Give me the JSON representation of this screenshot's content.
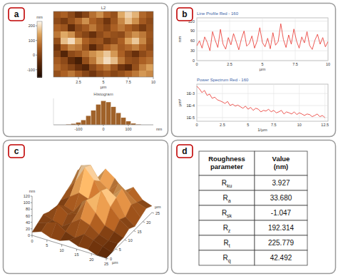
{
  "panels": [
    "a",
    "b",
    "c",
    "d"
  ],
  "chart_data": [
    {
      "type": "heatmap",
      "title": "L2",
      "xlabel": "µm",
      "xlim": [
        0,
        10
      ],
      "ylim": [
        0,
        10
      ],
      "xticks": [
        2.5,
        5,
        7.5,
        10
      ],
      "colorbar_label": "nm",
      "colorbar_range": [
        -150,
        230
      ],
      "colorbar_ticks": [
        -100,
        0,
        100,
        200
      ],
      "cells": [
        [
          40,
          60,
          20,
          -30,
          10,
          80,
          120,
          60,
          30,
          150,
          190,
          160,
          70,
          40
        ],
        [
          20,
          -10,
          30,
          70,
          120,
          60,
          30,
          -20,
          40,
          110,
          170,
          120,
          50,
          20
        ],
        [
          60,
          40,
          -40,
          20,
          50,
          90,
          40,
          10,
          60,
          90,
          60,
          30,
          -10,
          30
        ],
        [
          90,
          150,
          120,
          40,
          10,
          -30,
          20,
          50,
          30,
          20,
          80,
          120,
          90,
          40
        ],
        [
          30,
          170,
          200,
          140,
          60,
          30,
          40,
          -10,
          20,
          60,
          140,
          180,
          110,
          30
        ],
        [
          -20,
          60,
          110,
          90,
          30,
          -50,
          10,
          60,
          90,
          50,
          70,
          100,
          60,
          20
        ],
        [
          10,
          -60,
          20,
          40,
          80,
          120,
          150,
          180,
          130,
          60,
          10,
          -30,
          20,
          50
        ],
        [
          50,
          20,
          -40,
          -80,
          30,
          90,
          160,
          200,
          170,
          90,
          30,
          20,
          60,
          80
        ],
        [
          70,
          40,
          10,
          -30,
          -60,
          20,
          60,
          90,
          40,
          -20,
          -50,
          30,
          100,
          140
        ],
        [
          30,
          60,
          90,
          50,
          10,
          -20,
          20,
          40,
          10,
          30,
          60,
          90,
          130,
          110
        ]
      ]
    },
    {
      "type": "histogram",
      "title": "Histogram",
      "xlabel": "nm",
      "bins": [
        -150,
        -130,
        -110,
        -90,
        -70,
        -50,
        -30,
        -10,
        10,
        30,
        50,
        70,
        90,
        110,
        130,
        150
      ],
      "counts": [
        2,
        5,
        10,
        20,
        38,
        60,
        85,
        100,
        95,
        75,
        50,
        30,
        15,
        6,
        2
      ],
      "color": "#a0622a",
      "xlim": [
        -200,
        200
      ],
      "ylim": [
        0,
        110
      ],
      "xticks": [
        -100,
        0,
        100
      ],
      "tick_labels": "x"
    },
    {
      "type": "line",
      "title": "Line Profile Red - 160",
      "xlabel": "µm",
      "ylabel": "nm",
      "x": [
        0,
        0.2,
        0.4,
        0.6,
        0.8,
        1,
        1.2,
        1.4,
        1.6,
        1.8,
        2,
        2.2,
        2.4,
        2.6,
        2.8,
        3,
        3.2,
        3.4,
        3.6,
        3.8,
        4,
        4.2,
        4.4,
        4.6,
        4.8,
        5,
        5.2,
        5.4,
        5.6,
        5.8,
        6,
        6.2,
        6.4,
        6.6,
        6.8,
        7,
        7.2,
        7.4,
        7.6,
        7.8,
        8,
        8.2,
        8.4,
        8.6,
        8.8,
        9,
        9.2,
        9.4,
        9.6,
        9.8,
        10
      ],
      "values": [
        45,
        60,
        38,
        72,
        55,
        30,
        88,
        62,
        40,
        95,
        50,
        35,
        70,
        48,
        82,
        58,
        33,
        66,
        90,
        44,
        52,
        75,
        38,
        60,
        100,
        55,
        42,
        68,
        36,
        85,
        47,
        58,
        112,
        64,
        40,
        78,
        50,
        96,
        60,
        38,
        72,
        54,
        88,
        46,
        34,
        62,
        80,
        50,
        70,
        42,
        58
      ],
      "color": "#e8302a",
      "xlim": [
        0,
        10
      ],
      "ylim": [
        0,
        130
      ],
      "xticks": [
        0,
        2.5,
        5,
        7.5,
        10
      ],
      "yticks": [
        0,
        30,
        60,
        90,
        120
      ],
      "grid": true
    },
    {
      "type": "line",
      "title": "Power Spectrum Red - 160",
      "xlabel": "1/µm",
      "ylabel": "µm³",
      "log": "y",
      "x": [
        0,
        0.25,
        0.5,
        0.75,
        1,
        1.25,
        1.5,
        1.75,
        2,
        2.25,
        2.5,
        2.75,
        3,
        3.25,
        3.5,
        3.75,
        4,
        4.25,
        4.5,
        4.75,
        5,
        5.25,
        5.5,
        5.75,
        6,
        6.25,
        6.5,
        6.75,
        7,
        7.25,
        7.5,
        7.75,
        8,
        8.25,
        8.5,
        8.75,
        9,
        9.25,
        9.5,
        9.75,
        10,
        10.25,
        10.5,
        10.75,
        11,
        11.25,
        11.5,
        11.75,
        12,
        12.25,
        12.5
      ],
      "values": [
        0.004,
        0.0025,
        0.0012,
        0.0018,
        0.0007,
        0.0009,
        0.0004,
        0.0005,
        0.0003,
        0.00025,
        0.0002,
        0.00015,
        0.00022,
        0.0001,
        0.00013,
        9e-05,
        0.00011,
        8e-05,
        6e-05,
        9e-05,
        5e-05,
        7e-05,
        4e-05,
        6e-05,
        5e-05,
        3e-05,
        4e-05,
        3.5e-05,
        5e-05,
        3e-05,
        4e-05,
        2.5e-05,
        3e-05,
        4e-05,
        2e-05,
        3e-05,
        2.5e-05,
        2e-05,
        3e-05,
        1.8e-05,
        2.5e-05,
        2e-05,
        1.5e-05,
        2e-05,
        1.8e-05,
        1.2e-05,
        1.5e-05,
        2e-05,
        1.2e-05,
        1.5e-05,
        1e-05
      ],
      "color": "#e8302a",
      "xlim": [
        0,
        12.8
      ],
      "ylim": [
        5e-06,
        0.006
      ],
      "xticks": [
        0,
        2.5,
        5,
        7.5,
        10,
        12.5
      ],
      "yticks": [
        {
          "value": 0.001,
          "label": "1E-3"
        },
        {
          "value": 0.0001,
          "label": "1E-4"
        },
        {
          "value": 1e-05,
          "label": "1E-5"
        }
      ],
      "grid": true
    },
    {
      "type": "surface",
      "xlabel": "µm",
      "ylabel": "µm",
      "zlabel": "nm",
      "xlim": [
        0,
        25
      ],
      "ylim": [
        0,
        25
      ],
      "zlim": [
        0,
        120
      ],
      "xticks": [
        0,
        5,
        10,
        15,
        20,
        25
      ],
      "yticks": [
        0,
        5,
        10,
        15,
        20,
        25
      ],
      "zticks": [
        0,
        20,
        40,
        60,
        80,
        100,
        120
      ],
      "z": [
        [
          60,
          80,
          50,
          90,
          70,
          40,
          60,
          30,
          20
        ],
        [
          40,
          100,
          110,
          70,
          50,
          80,
          60,
          40,
          30
        ],
        [
          30,
          70,
          120,
          90,
          40,
          60,
          90,
          50,
          20
        ],
        [
          20,
          40,
          60,
          50,
          30,
          100,
          80,
          30,
          10
        ],
        [
          10,
          30,
          20,
          60,
          80,
          110,
          70,
          40,
          20
        ],
        [
          20,
          50,
          30,
          40,
          90,
          60,
          30,
          20,
          10
        ],
        [
          30,
          20,
          10,
          30,
          50,
          40,
          20,
          10,
          10
        ],
        [
          20,
          30,
          40,
          20,
          10,
          30,
          20,
          10,
          0
        ],
        [
          10,
          20,
          10,
          10,
          20,
          10,
          10,
          0,
          0
        ]
      ]
    }
  ],
  "table": {
    "headers": [
      "Roughness parameter",
      "Value (nm)"
    ],
    "rows": [
      {
        "symbol": "R",
        "subscript": "ku",
        "value": "3.927"
      },
      {
        "symbol": "R",
        "subscript": "a",
        "value": "33.680"
      },
      {
        "symbol": "R",
        "subscript": "sk",
        "value": "-1.047"
      },
      {
        "symbol": "R",
        "subscript": "z",
        "value": "192.314"
      },
      {
        "symbol": "R",
        "subscript": "t",
        "value": "225.779"
      },
      {
        "symbol": "R",
        "subscript": "q",
        "value": "42.492"
      }
    ]
  }
}
